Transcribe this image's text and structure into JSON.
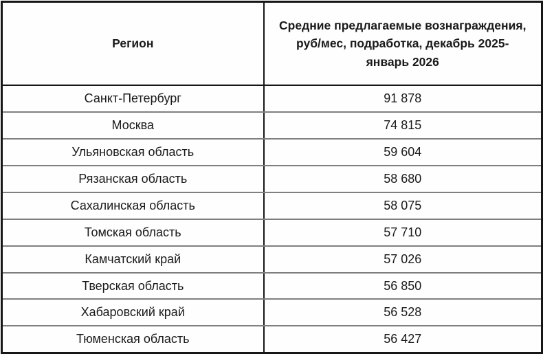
{
  "colors": {
    "outer_border": "#161616",
    "inner_border": "#7f7f7f",
    "text": "#1a1a1a",
    "background": "#fdfdfd"
  },
  "table": {
    "columns": {
      "region_header": "Регион",
      "value_header": "Средние предлагаемые вознаграждения, руб/мес, подработка, декабрь 2025-январь 2026"
    },
    "rows": [
      {
        "region": "Санкт-Петербург",
        "value": "91 878"
      },
      {
        "region": "Москва",
        "value": "74 815"
      },
      {
        "region": "Ульяновская область",
        "value": "59 604"
      },
      {
        "region": "Рязанская область",
        "value": "58 680"
      },
      {
        "region": "Сахалинская область",
        "value": "58 075"
      },
      {
        "region": "Томская область",
        "value": "57 710"
      },
      {
        "region": "Камчатский край",
        "value": "57 026"
      },
      {
        "region": "Тверская область",
        "value": "56 850"
      },
      {
        "region": "Хабаровский край",
        "value": "56 528"
      },
      {
        "region": "Тюменская область",
        "value": "56 427"
      }
    ]
  },
  "chart_data": {
    "type": "table",
    "title": "Средние предлагаемые вознаграждения, руб/мес, подработка, декабрь 2025-январь 2026",
    "columns": [
      "Регион",
      "Средние предлагаемые вознаграждения, руб/мес, подработка, декабрь 2025-январь 2026"
    ],
    "categories": [
      "Санкт-Петербург",
      "Москва",
      "Ульяновская область",
      "Рязанская область",
      "Сахалинская область",
      "Томская область",
      "Камчатский край",
      "Тверская область",
      "Хабаровский край",
      "Тюменская область"
    ],
    "values": [
      91878,
      74815,
      59604,
      58680,
      58075,
      57710,
      57026,
      56850,
      56528,
      56427
    ],
    "value_unit": "руб/мес",
    "period": "декабрь 2025-январь 2026"
  }
}
